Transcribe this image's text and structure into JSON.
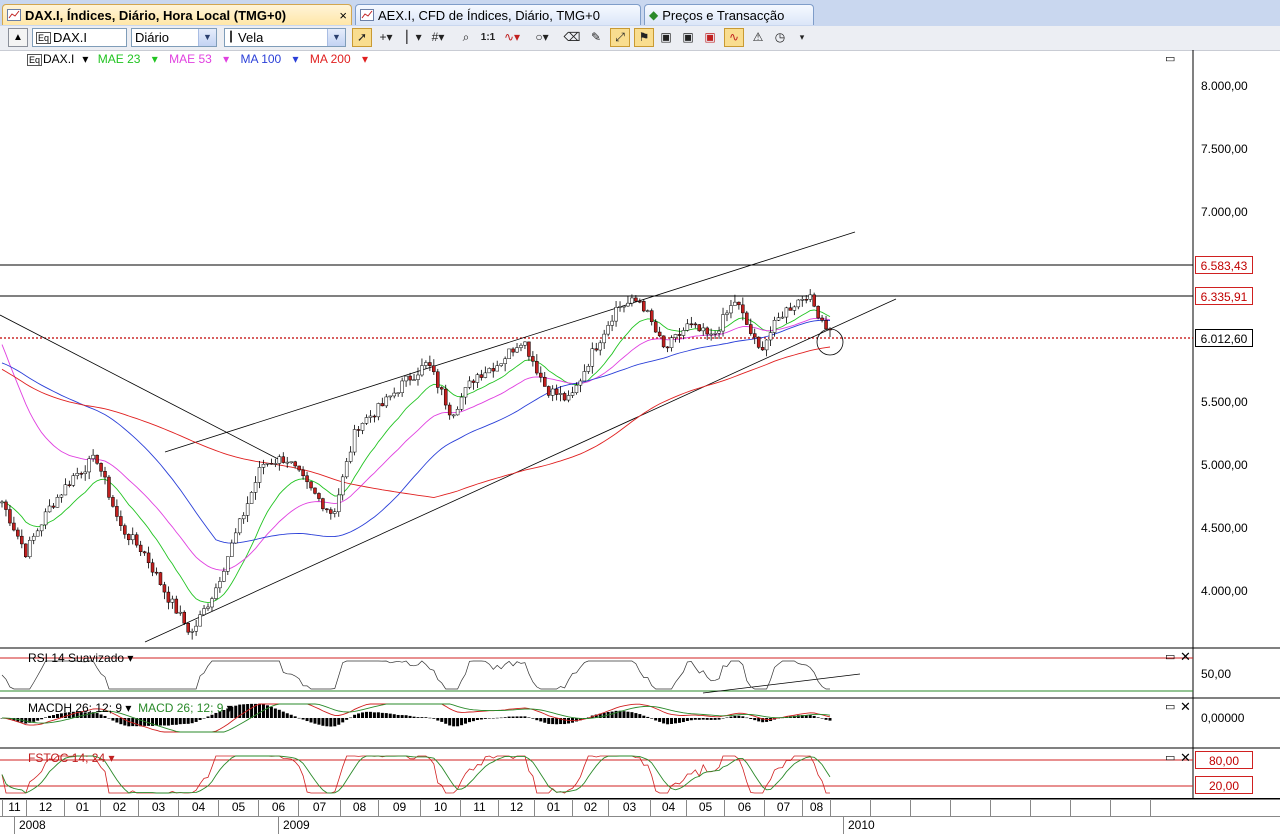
{
  "tabs": [
    {
      "label": "DAX.I, Índices, Diário, Hora Local (TMG+0)",
      "active": true,
      "close": "×"
    },
    {
      "label": "AEX.I, CFD de Índices, Diário, TMG+0",
      "active": false
    },
    {
      "label": "Preços e Transacção",
      "active": false
    }
  ],
  "toolbar": {
    "symbol": "DAX.I",
    "symbol_prefix": "Eq",
    "period": "Diário",
    "chart_type": "Vela",
    "zoom_label": "1:1"
  },
  "legend": {
    "instrument": "DAX.I",
    "indicators": [
      {
        "label": "MAE 23",
        "color": "#22c422"
      },
      {
        "label": "MAE 53",
        "color": "#e040e0"
      },
      {
        "label": "MA 100",
        "color": "#2a3fd8"
      },
      {
        "label": "MA 200",
        "color": "#e02020"
      }
    ]
  },
  "price_axis": [
    "8.000,00",
    "7.500,00",
    "7.000,00",
    "5.500,00",
    "5.000,00",
    "4.500,00",
    "4.000,00"
  ],
  "price_markers": [
    {
      "label": "6.583,43",
      "color": "#d02020"
    },
    {
      "label": "6.335,91",
      "color": "#d02020"
    },
    {
      "label": "6.012,60",
      "color": "#000000"
    }
  ],
  "rsi": {
    "label": "RSI 14 Suavizado",
    "level": "50,00"
  },
  "macd": {
    "label_hist": "MACDH 26; 12; 9",
    "label_line": "MACD 26; 12; 9",
    "level": "0,00000"
  },
  "stoch": {
    "label": "FSTOC 14; 24",
    "upper": "80,00",
    "lower": "20,00"
  },
  "time_axis": {
    "months": [
      "11",
      "12",
      "01",
      "02",
      "03",
      "04",
      "05",
      "06",
      "07",
      "08",
      "09",
      "10",
      "11",
      "12",
      "01",
      "02",
      "03",
      "04",
      "05",
      "06",
      "07",
      "08"
    ],
    "years": [
      "2008",
      "2009",
      "2010"
    ]
  },
  "colors": {
    "mae23": "#22c422",
    "mae53": "#e040e0",
    "ma100": "#2a3fd8",
    "ma200": "#e02020",
    "candle_up": "#ffffff",
    "candle_down": "#c0201f",
    "tab_active": "#ffe7a8"
  },
  "chart_data": {
    "type": "candlestick",
    "symbol": "DAX.I",
    "timeframe": "Diário",
    "y_axis_ticks": [
      4000,
      4500,
      5000,
      5500,
      7000,
      7500,
      8000
    ],
    "horizontal_levels": [
      6583.43,
      6335.91,
      6012.6
    ],
    "close_path": [
      {
        "t": "2008-11",
        "v": 4700
      },
      {
        "t": "2008-11-mid",
        "v": 4300
      },
      {
        "t": "2008-12",
        "v": 4650
      },
      {
        "t": "2008-12-end",
        "v": 4900
      },
      {
        "t": "2009-01-early",
        "v": 5050
      },
      {
        "t": "2009-01",
        "v": 4500
      },
      {
        "t": "2009-02",
        "v": 4300
      },
      {
        "t": "2009-02-end",
        "v": 3950
      },
      {
        "t": "2009-03-low",
        "v": 3650
      },
      {
        "t": "2009-03",
        "v": 4000
      },
      {
        "t": "2009-04",
        "v": 4500
      },
      {
        "t": "2009-05",
        "v": 5000
      },
      {
        "t": "2009-06",
        "v": 5050
      },
      {
        "t": "2009-06-end",
        "v": 4800
      },
      {
        "t": "2009-07",
        "v": 4600
      },
      {
        "t": "2009-07-end",
        "v": 5300
      },
      {
        "t": "2009-08",
        "v": 5450
      },
      {
        "t": "2009-09",
        "v": 5650
      },
      {
        "t": "2009-10",
        "v": 5800
      },
      {
        "t": "2009-10-end",
        "v": 5400
      },
      {
        "t": "2009-11",
        "v": 5700
      },
      {
        "t": "2009-12",
        "v": 5800
      },
      {
        "t": "2010-01",
        "v": 6000
      },
      {
        "t": "2010-01-end",
        "v": 5600
      },
      {
        "t": "2010-02",
        "v": 5500
      },
      {
        "t": "2010-03",
        "v": 5900
      },
      {
        "t": "2010-04",
        "v": 6250
      },
      {
        "t": "2010-04-end",
        "v": 6300
      },
      {
        "t": "2010-05",
        "v": 5900
      },
      {
        "t": "2010-05-end",
        "v": 6100
      },
      {
        "t": "2010-06",
        "v": 6000
      },
      {
        "t": "2010-06-end",
        "v": 6300
      },
      {
        "t": "2010-07",
        "v": 5900
      },
      {
        "t": "2010-07-end",
        "v": 6200
      },
      {
        "t": "2010-08",
        "v": 6350
      },
      {
        "t": "2010-08-end",
        "v": 6050
      }
    ]
  }
}
